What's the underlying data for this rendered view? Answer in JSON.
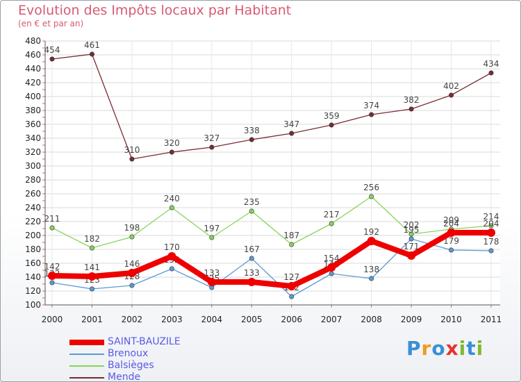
{
  "title": "Evolution des Impôts locaux par Habitant",
  "subtitle": "(en € et par an)",
  "logo": {
    "text": "Proxiti",
    "colors": [
      "#3a8fd6",
      "#f29a1c",
      "#3a8fd6",
      "#e8322b",
      "#7dbb2e",
      "#3a8fd6",
      "#7dbb2e"
    ]
  },
  "chart_data": {
    "type": "line",
    "title": "Evolution des Impôts locaux par Habitant",
    "subtitle": "(en € et par an)",
    "xlabel": "",
    "ylabel": "",
    "ylim": [
      100,
      480
    ],
    "yticks": [
      100,
      120,
      140,
      160,
      180,
      200,
      220,
      240,
      260,
      280,
      300,
      320,
      340,
      360,
      380,
      400,
      420,
      440,
      460,
      480
    ],
    "categories": [
      "2000",
      "2001",
      "2002",
      "2003",
      "2004",
      "2005",
      "2006",
      "2007",
      "2008",
      "2009",
      "2010",
      "2011"
    ],
    "grid": true,
    "legend_position": "bottom-left",
    "series": [
      {
        "name": "Mende",
        "color": "#7a2b33",
        "values": [
          454,
          461,
          310,
          320,
          327,
          338,
          347,
          359,
          374,
          382,
          402,
          434
        ]
      },
      {
        "name": "Balsièges",
        "color": "#88d45c",
        "values": [
          211,
          182,
          198,
          240,
          197,
          235,
          187,
          217,
          256,
          202,
          209,
          214
        ]
      },
      {
        "name": "Brenoux",
        "color": "#5b9bd5",
        "values": [
          132,
          123,
          128,
          152,
          125,
          167,
          112,
          145,
          138,
          195,
          179,
          178
        ]
      },
      {
        "name": "SAINT-BAUZILE",
        "color": "#ee0000",
        "values": [
          142,
          141,
          146,
          170,
          133,
          133,
          127,
          154,
          192,
          171,
          204,
          204
        ]
      }
    ],
    "legend_order": [
      "SAINT-BAUZILE",
      "Brenoux",
      "Balsièges",
      "Mende"
    ]
  }
}
